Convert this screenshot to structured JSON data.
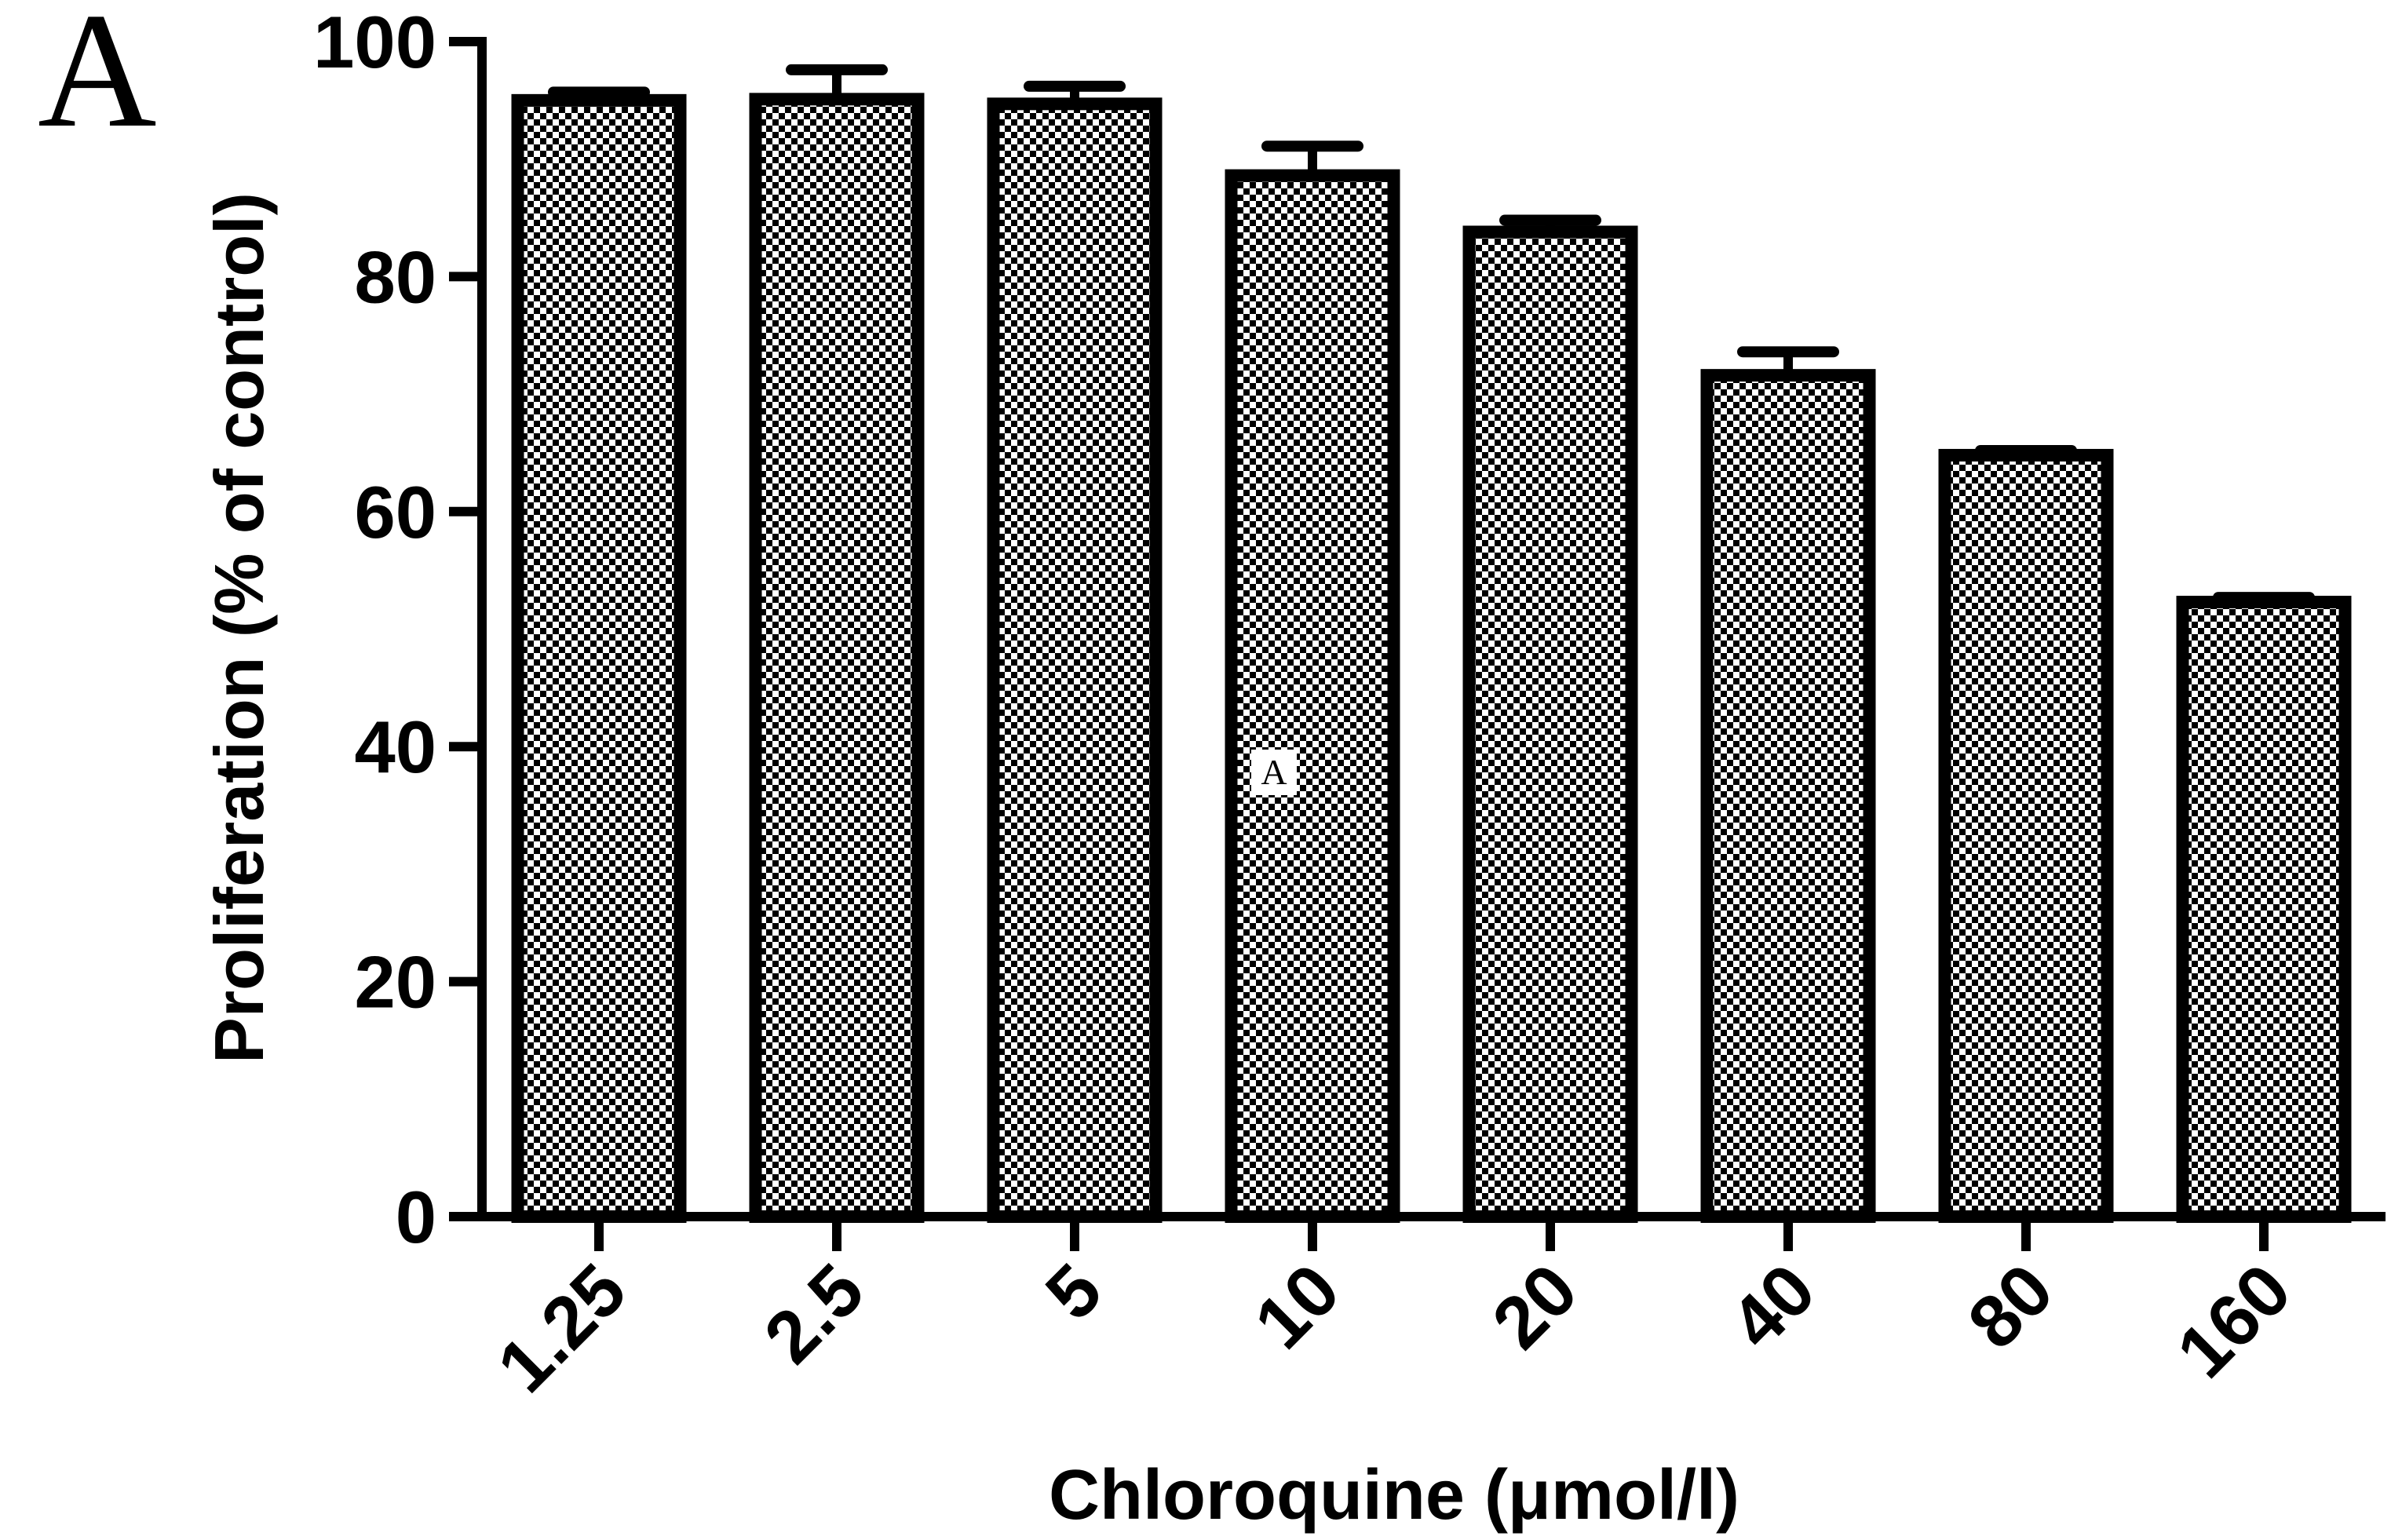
{
  "chart_data": {
    "type": "bar",
    "panel_label": "A",
    "annotation": "A",
    "x_label": "Chloroquine (μmol/l)",
    "y_label": "Proliferation (% of control)",
    "categories": [
      "1.25",
      "2.5",
      "5",
      "10",
      "20",
      "40",
      "80",
      "160"
    ],
    "values": [
      95,
      95.1,
      94.7,
      88.6,
      83.8,
      71.6,
      64.8,
      52.3
    ],
    "errors": [
      0.7,
      2.5,
      1.5,
      2.5,
      1,
      2,
      0.4,
      0.4
    ],
    "color": "#000000",
    "ylim": [
      0,
      100
    ],
    "yticks": [
      0,
      20,
      40,
      60,
      80,
      100
    ],
    "grid": false
  }
}
